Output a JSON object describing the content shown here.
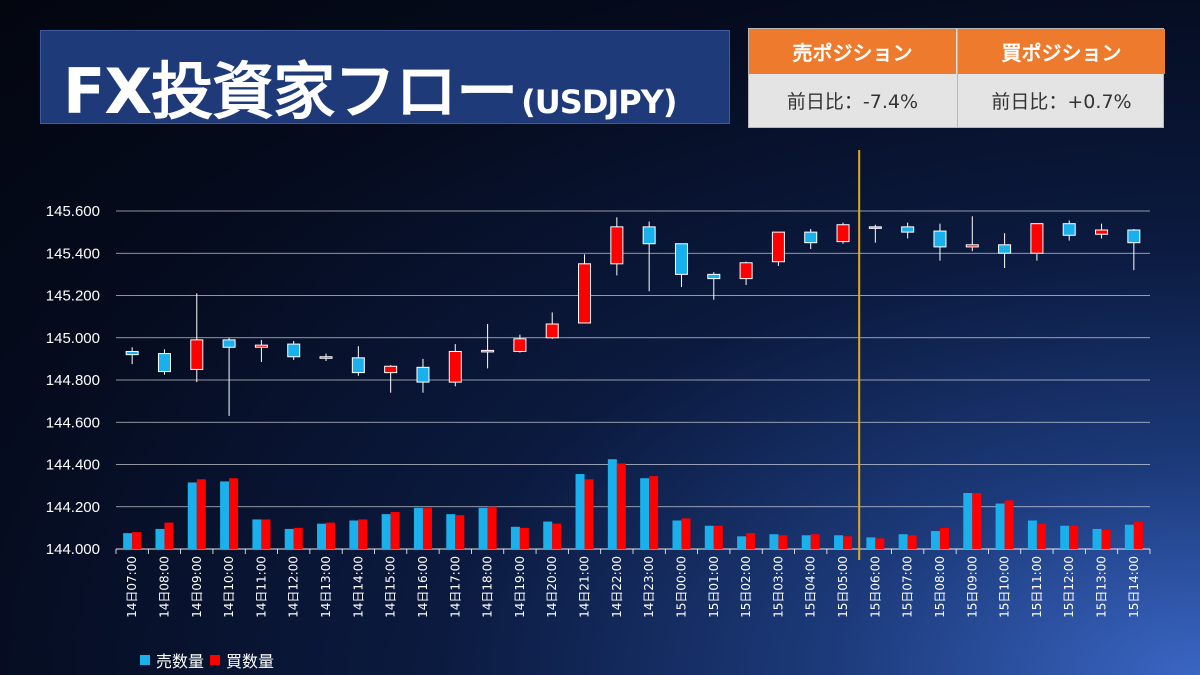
{
  "header": {
    "title_main": "FX投資家フロー",
    "title_sub": "(USDJPY)"
  },
  "positions": {
    "sell": {
      "label": "売ポジション",
      "value": "前日比：-7.4%"
    },
    "buy": {
      "label": "買ポジション",
      "value": "前日比：+0.7%"
    }
  },
  "colors": {
    "sell": "#1ab0ec",
    "buy": "#ff0000",
    "marker": "#e6a817",
    "grid": "#ffffff",
    "header_accent": "#ee7b2d"
  },
  "chart_data": {
    "type": "candlestick+bar",
    "ylim": [
      144.0,
      145.6
    ],
    "yticks": [
      "144.000",
      "144.200",
      "144.400",
      "144.600",
      "144.800",
      "145.000",
      "145.200",
      "145.400",
      "145.600"
    ],
    "categories": [
      "14日07:00",
      "14日08:00",
      "14日09:00",
      "14日10:00",
      "14日11:00",
      "14日12:00",
      "14日13:00",
      "14日14:00",
      "14日15:00",
      "14日16:00",
      "14日17:00",
      "14日18:00",
      "14日19:00",
      "14日20:00",
      "14日21:00",
      "14日22:00",
      "14日23:00",
      "15日00:00",
      "15日01:00",
      "15日02:00",
      "15日03:00",
      "15日04:00",
      "15日05:00",
      "15日06:00",
      "15日07:00",
      "15日08:00",
      "15日09:00",
      "15日10:00",
      "15日11:00",
      "15日12:00",
      "15日13:00",
      "15日14:00"
    ],
    "candles": [
      {
        "o": 144.935,
        "h": 144.955,
        "l": 144.875,
        "c": 144.92
      },
      {
        "o": 144.925,
        "h": 144.945,
        "l": 144.825,
        "c": 144.84
      },
      {
        "o": 144.85,
        "h": 145.21,
        "l": 144.79,
        "c": 144.99
      },
      {
        "o": 144.99,
        "h": 145.0,
        "l": 144.63,
        "c": 144.955
      },
      {
        "o": 144.955,
        "h": 144.99,
        "l": 144.885,
        "c": 144.965
      },
      {
        "o": 144.97,
        "h": 144.985,
        "l": 144.895,
        "c": 144.91
      },
      {
        "o": 144.91,
        "h": 144.925,
        "l": 144.89,
        "c": 144.91
      },
      {
        "o": 144.905,
        "h": 144.96,
        "l": 144.82,
        "c": 144.835
      },
      {
        "o": 144.835,
        "h": 144.87,
        "l": 144.74,
        "c": 144.865
      },
      {
        "o": 144.86,
        "h": 144.9,
        "l": 144.74,
        "c": 144.79
      },
      {
        "o": 144.79,
        "h": 144.97,
        "l": 144.77,
        "c": 144.935
      },
      {
        "o": 144.94,
        "h": 145.065,
        "l": 144.855,
        "c": 144.94
      },
      {
        "o": 144.935,
        "h": 145.015,
        "l": 144.93,
        "c": 144.995
      },
      {
        "o": 145.0,
        "h": 145.12,
        "l": 144.995,
        "c": 145.065
      },
      {
        "o": 145.07,
        "h": 145.395,
        "l": 145.07,
        "c": 145.35
      },
      {
        "o": 145.35,
        "h": 145.57,
        "l": 145.295,
        "c": 145.525
      },
      {
        "o": 145.525,
        "h": 145.55,
        "l": 145.22,
        "c": 145.445
      },
      {
        "o": 145.445,
        "h": 145.445,
        "l": 145.24,
        "c": 145.3
      },
      {
        "o": 145.3,
        "h": 145.31,
        "l": 145.18,
        "c": 145.28
      },
      {
        "o": 145.28,
        "h": 145.36,
        "l": 145.25,
        "c": 145.355
      },
      {
        "o": 145.36,
        "h": 145.5,
        "l": 145.34,
        "c": 145.5
      },
      {
        "o": 145.5,
        "h": 145.515,
        "l": 145.42,
        "c": 145.45
      },
      {
        "o": 145.455,
        "h": 145.545,
        "l": 145.445,
        "c": 145.535
      },
      {
        "o": 145.525,
        "h": 145.535,
        "l": 145.45,
        "c": 145.52
      },
      {
        "o": 145.525,
        "h": 145.545,
        "l": 145.47,
        "c": 145.5
      },
      {
        "o": 145.505,
        "h": 145.54,
        "l": 145.365,
        "c": 145.43
      },
      {
        "o": 145.43,
        "h": 145.575,
        "l": 145.41,
        "c": 145.44
      },
      {
        "o": 145.44,
        "h": 145.495,
        "l": 145.33,
        "c": 145.4
      },
      {
        "o": 145.4,
        "h": 145.54,
        "l": 145.365,
        "c": 145.54
      },
      {
        "o": 145.54,
        "h": 145.555,
        "l": 145.46,
        "c": 145.485
      },
      {
        "o": 145.49,
        "h": 145.54,
        "l": 145.47,
        "c": 145.51
      },
      {
        "o": 145.51,
        "h": 145.515,
        "l": 145.32,
        "c": 145.45
      }
    ],
    "series": [
      {
        "name": "売数量",
        "values": [
          144.075,
          144.095,
          144.315,
          144.32,
          144.14,
          144.095,
          144.12,
          144.135,
          144.165,
          144.195,
          144.165,
          144.195,
          144.105,
          144.13,
          144.355,
          144.425,
          144.335,
          144.135,
          144.11,
          144.06,
          144.07,
          144.065,
          144.065,
          144.055,
          144.07,
          144.085,
          144.265,
          144.215,
          144.135,
          144.11,
          144.095,
          144.115
        ]
      },
      {
        "name": "買数量",
        "values": [
          144.08,
          144.125,
          144.33,
          144.335,
          144.14,
          144.1,
          144.125,
          144.14,
          144.175,
          144.195,
          144.16,
          144.2,
          144.1,
          144.12,
          144.33,
          144.405,
          144.345,
          144.145,
          144.11,
          144.075,
          144.065,
          144.07,
          144.06,
          144.05,
          144.065,
          144.1,
          144.265,
          144.23,
          144.12,
          144.11,
          144.09,
          144.13
        ]
      }
    ],
    "marker_after_category": "15日05:00",
    "legend_position": "bottom-left",
    "grid": true
  }
}
